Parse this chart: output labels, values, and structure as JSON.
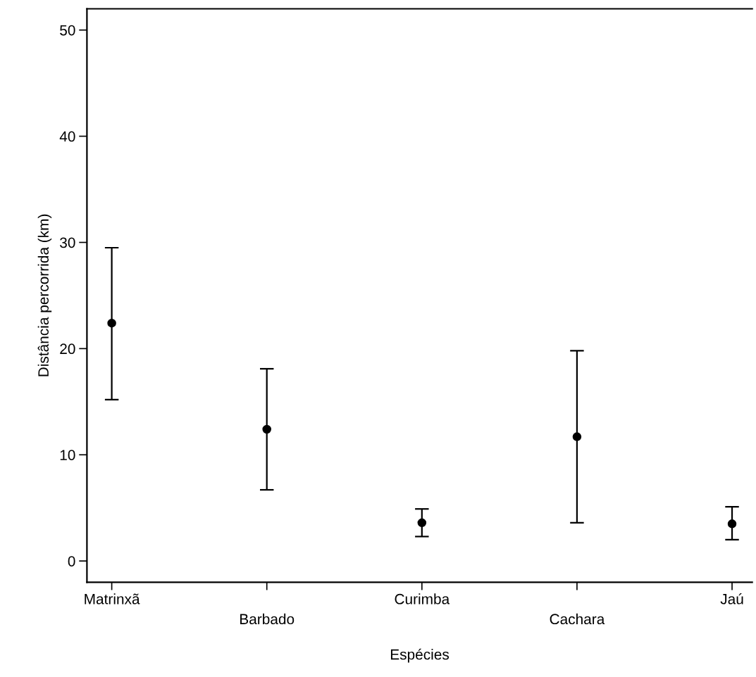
{
  "chart_data": {
    "type": "scatter",
    "xlabel": "Espécies",
    "ylabel": "Distância percorrida (km)",
    "categories": [
      "Matrinxã",
      "Barbado",
      "Curimba",
      "Cachara",
      "Jaú"
    ],
    "values": [
      22.4,
      12.4,
      3.6,
      11.7,
      3.5
    ],
    "errors": [
      [
        15.2,
        29.5
      ],
      [
        6.7,
        18.1
      ],
      [
        2.3,
        4.9
      ],
      [
        3.6,
        19.8
      ],
      [
        2.0,
        5.1
      ]
    ],
    "color": "#000000",
    "marker": "circle",
    "ylim": [
      -2,
      52
    ],
    "yticks": [
      0,
      10,
      20,
      30,
      40,
      50
    ],
    "grid": false,
    "legend": false
  }
}
